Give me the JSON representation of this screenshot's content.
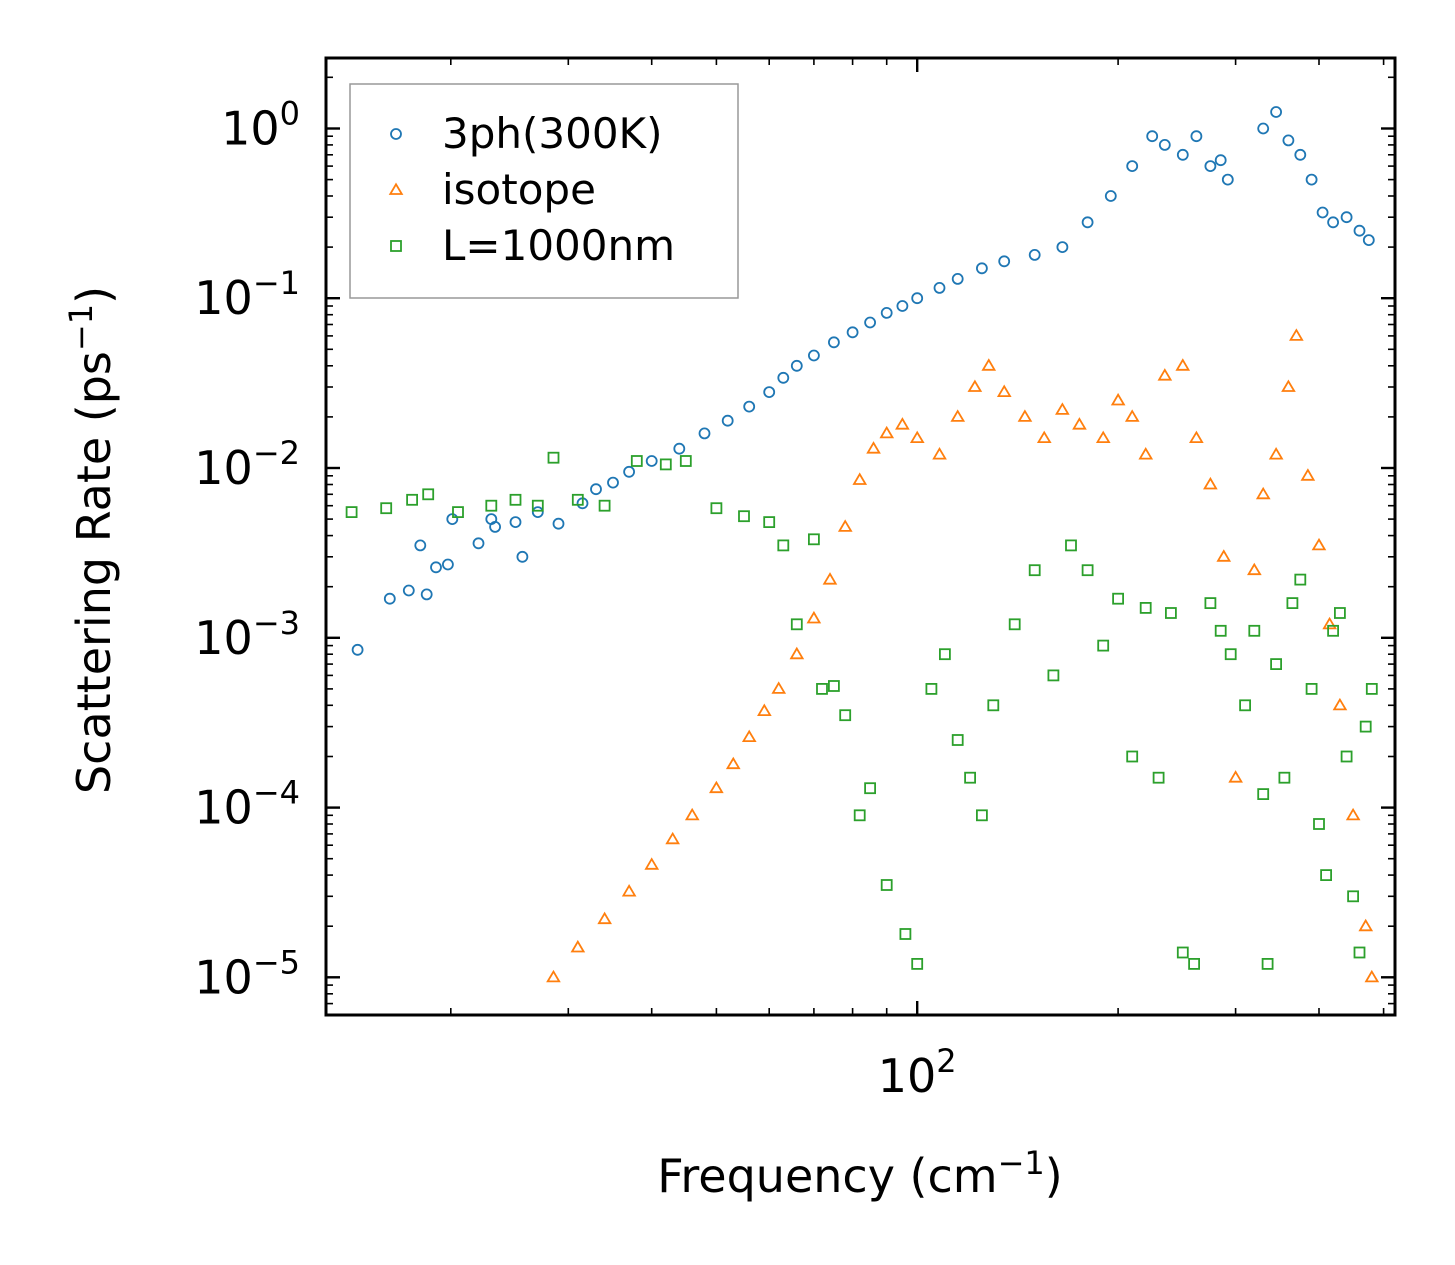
{
  "chart_data": {
    "type": "scatter",
    "title": "",
    "xlabel": {
      "base": "Frequency (cm",
      "sup": "−1",
      "tail": ")"
    },
    "ylabel": {
      "base": "Scattering Rate (ps",
      "sup": "−1",
      "tail": ")"
    },
    "xscale": "log",
    "yscale": "log",
    "xlim": [
      13,
      520
    ],
    "ylim": [
      6e-06,
      2.6
    ],
    "x_ticks": [
      {
        "value": 100,
        "base": "10",
        "exp": "2"
      }
    ],
    "y_ticks": [
      {
        "value": 1,
        "base": "10",
        "exp": "0"
      },
      {
        "value": 0.1,
        "base": "10",
        "exp": "−1"
      },
      {
        "value": 0.01,
        "base": "10",
        "exp": "−2"
      },
      {
        "value": 0.001,
        "base": "10",
        "exp": "−3"
      },
      {
        "value": 0.0001,
        "base": "10",
        "exp": "−4"
      },
      {
        "value": 1e-05,
        "base": "10",
        "exp": "−5"
      }
    ],
    "legend_position": "top-left",
    "series": [
      {
        "name": "3ph(300K)",
        "marker": "circle",
        "color": "#1f77b4",
        "points": [
          [
            14.5,
            0.00085
          ],
          [
            16.2,
            0.0017
          ],
          [
            17.3,
            0.0019
          ],
          [
            18.0,
            0.0035
          ],
          [
            18.4,
            0.0018
          ],
          [
            19.0,
            0.0026
          ],
          [
            19.8,
            0.0027
          ],
          [
            20.1,
            0.005
          ],
          [
            22.0,
            0.0036
          ],
          [
            23.0,
            0.005
          ],
          [
            23.3,
            0.0045
          ],
          [
            25.0,
            0.0048
          ],
          [
            25.6,
            0.003
          ],
          [
            27.0,
            0.0055
          ],
          [
            29.0,
            0.0047
          ],
          [
            31.5,
            0.0062
          ],
          [
            33.0,
            0.0075
          ],
          [
            35.0,
            0.0082
          ],
          [
            37.0,
            0.0095
          ],
          [
            40.0,
            0.011
          ],
          [
            44.0,
            0.013
          ],
          [
            48.0,
            0.016
          ],
          [
            52.0,
            0.019
          ],
          [
            56.0,
            0.023
          ],
          [
            60.0,
            0.028
          ],
          [
            63.0,
            0.034
          ],
          [
            66.0,
            0.04
          ],
          [
            70.0,
            0.046
          ],
          [
            75.0,
            0.055
          ],
          [
            80.0,
            0.063
          ],
          [
            85.0,
            0.072
          ],
          [
            90.0,
            0.082
          ],
          [
            95.0,
            0.09
          ],
          [
            100.0,
            0.1
          ],
          [
            108.0,
            0.115
          ],
          [
            115.0,
            0.13
          ],
          [
            125.0,
            0.15
          ],
          [
            135.0,
            0.165
          ],
          [
            150.0,
            0.18
          ],
          [
            165.0,
            0.2
          ],
          [
            180.0,
            0.28
          ],
          [
            195.0,
            0.4
          ],
          [
            210.0,
            0.6
          ],
          [
            225.0,
            0.9
          ],
          [
            235.0,
            0.8
          ],
          [
            250.0,
            0.7
          ],
          [
            262.0,
            0.9
          ],
          [
            275.0,
            0.6
          ],
          [
            285.0,
            0.65
          ],
          [
            292.0,
            0.5
          ],
          [
            330.0,
            1.0
          ],
          [
            345.0,
            1.25
          ],
          [
            360.0,
            0.85
          ],
          [
            375.0,
            0.7
          ],
          [
            390.0,
            0.5
          ],
          [
            405.0,
            0.32
          ],
          [
            420.0,
            0.28
          ],
          [
            440.0,
            0.3
          ],
          [
            460.0,
            0.25
          ],
          [
            475.0,
            0.22
          ]
        ]
      },
      {
        "name": "isotope",
        "marker": "triangle",
        "color": "#ff7f0e",
        "points": [
          [
            28.5,
            1e-05
          ],
          [
            31.0,
            1.5e-05
          ],
          [
            34.0,
            2.2e-05
          ],
          [
            37.0,
            3.2e-05
          ],
          [
            40.0,
            4.6e-05
          ],
          [
            43.0,
            6.5e-05
          ],
          [
            46.0,
            9e-05
          ],
          [
            50.0,
            0.00013
          ],
          [
            53.0,
            0.00018
          ],
          [
            56.0,
            0.00026
          ],
          [
            59.0,
            0.00037
          ],
          [
            62.0,
            0.0005
          ],
          [
            66.0,
            0.0008
          ],
          [
            70.0,
            0.0013
          ],
          [
            74.0,
            0.0022
          ],
          [
            78.0,
            0.0045
          ],
          [
            82.0,
            0.0085
          ],
          [
            86.0,
            0.013
          ],
          [
            90.0,
            0.016
          ],
          [
            95.0,
            0.018
          ],
          [
            100.0,
            0.015
          ],
          [
            108.0,
            0.012
          ],
          [
            115.0,
            0.02
          ],
          [
            122.0,
            0.03
          ],
          [
            128.0,
            0.04
          ],
          [
            135.0,
            0.028
          ],
          [
            145.0,
            0.02
          ],
          [
            155.0,
            0.015
          ],
          [
            165.0,
            0.022
          ],
          [
            175.0,
            0.018
          ],
          [
            190.0,
            0.015
          ],
          [
            200.0,
            0.025
          ],
          [
            210.0,
            0.02
          ],
          [
            220.0,
            0.012
          ],
          [
            235.0,
            0.035
          ],
          [
            250.0,
            0.04
          ],
          [
            262.0,
            0.015
          ],
          [
            275.0,
            0.008
          ],
          [
            288.0,
            0.003
          ],
          [
            300.0,
            0.00015
          ],
          [
            320.0,
            0.0025
          ],
          [
            330.0,
            0.007
          ],
          [
            345.0,
            0.012
          ],
          [
            360.0,
            0.03
          ],
          [
            370.0,
            0.06
          ],
          [
            385.0,
            0.009
          ],
          [
            400.0,
            0.0035
          ],
          [
            415.0,
            0.0012
          ],
          [
            430.0,
            0.0004
          ],
          [
            450.0,
            9e-05
          ],
          [
            470.0,
            2e-05
          ],
          [
            480.0,
            1e-05
          ]
        ]
      },
      {
        "name": "L=1000nm",
        "marker": "square",
        "color": "#2ca02c",
        "points": [
          [
            14.2,
            0.0055
          ],
          [
            16.0,
            0.0058
          ],
          [
            17.5,
            0.0065
          ],
          [
            18.5,
            0.007
          ],
          [
            20.5,
            0.0055
          ],
          [
            23.0,
            0.006
          ],
          [
            25.0,
            0.0065
          ],
          [
            27.0,
            0.006
          ],
          [
            28.5,
            0.0115
          ],
          [
            31.0,
            0.0065
          ],
          [
            34.0,
            0.006
          ],
          [
            38.0,
            0.011
          ],
          [
            42.0,
            0.0105
          ],
          [
            45.0,
            0.011
          ],
          [
            50.0,
            0.0058
          ],
          [
            55.0,
            0.0052
          ],
          [
            60.0,
            0.0048
          ],
          [
            63.0,
            0.0035
          ],
          [
            66.0,
            0.0012
          ],
          [
            70.0,
            0.0038
          ],
          [
            72.0,
            0.0005
          ],
          [
            75.0,
            0.00052
          ],
          [
            78.0,
            0.00035
          ],
          [
            82.0,
            9e-05
          ],
          [
            85.0,
            0.00013
          ],
          [
            90.0,
            3.5e-05
          ],
          [
            96.0,
            1.8e-05
          ],
          [
            100.0,
            1.2e-05
          ],
          [
            105.0,
            0.0005
          ],
          [
            110.0,
            0.0008
          ],
          [
            115.0,
            0.00025
          ],
          [
            120.0,
            0.00015
          ],
          [
            125.0,
            9e-05
          ],
          [
            130.0,
            0.0004
          ],
          [
            140.0,
            0.0012
          ],
          [
            150.0,
            0.0025
          ],
          [
            160.0,
            0.0006
          ],
          [
            170.0,
            0.0035
          ],
          [
            180.0,
            0.0025
          ],
          [
            190.0,
            0.0009
          ],
          [
            200.0,
            0.0017
          ],
          [
            210.0,
            0.0002
          ],
          [
            220.0,
            0.0015
          ],
          [
            230.0,
            0.00015
          ],
          [
            240.0,
            0.0014
          ],
          [
            250.0,
            1.4e-05
          ],
          [
            260.0,
            1.2e-05
          ],
          [
            275.0,
            0.0016
          ],
          [
            285.0,
            0.0011
          ],
          [
            295.0,
            0.0008
          ],
          [
            310.0,
            0.0004
          ],
          [
            320.0,
            0.0011
          ],
          [
            330.0,
            0.00012
          ],
          [
            335.0,
            1.2e-05
          ],
          [
            345.0,
            0.0007
          ],
          [
            355.0,
            0.00015
          ],
          [
            365.0,
            0.0016
          ],
          [
            375.0,
            0.0022
          ],
          [
            390.0,
            0.0005
          ],
          [
            400.0,
            8e-05
          ],
          [
            410.0,
            4e-05
          ],
          [
            420.0,
            0.0011
          ],
          [
            430.0,
            0.0014
          ],
          [
            440.0,
            0.0002
          ],
          [
            450.0,
            3e-05
          ],
          [
            460.0,
            1.4e-05
          ],
          [
            470.0,
            0.0003
          ],
          [
            480.0,
            0.0005
          ]
        ]
      }
    ]
  }
}
